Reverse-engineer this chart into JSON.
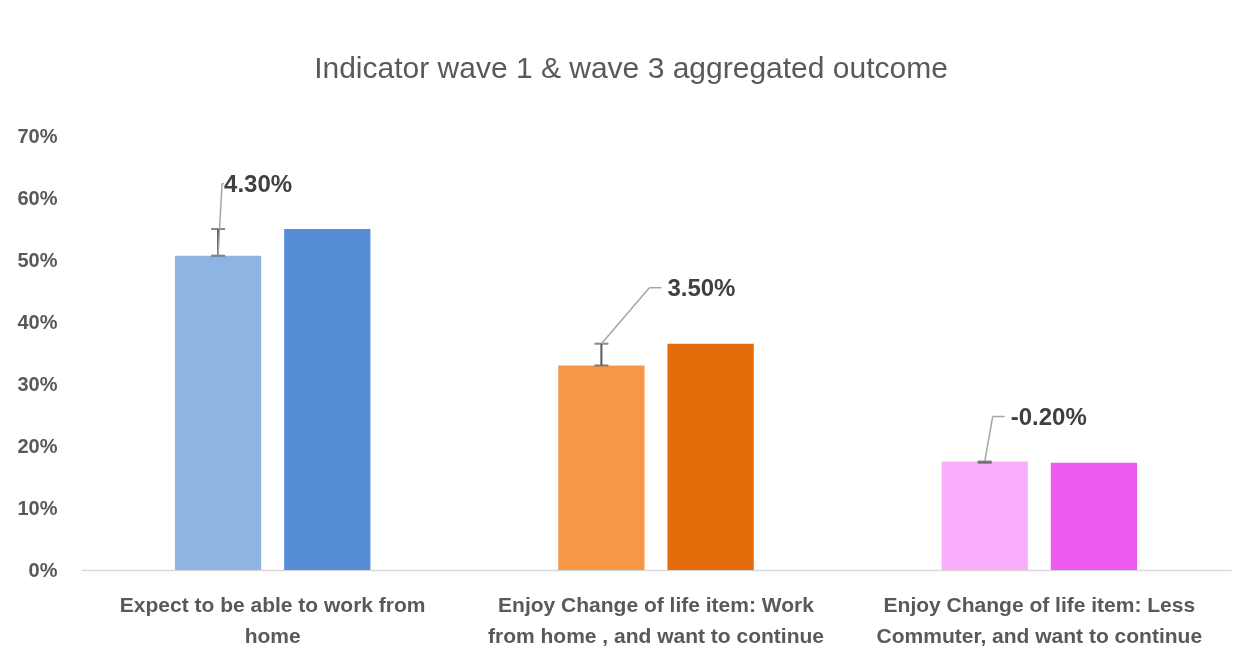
{
  "chart_data": {
    "type": "bar",
    "title": "Indicator wave 1 & wave 3  aggregated outcome",
    "categories": [
      "Expect to be able to work from home",
      "Enjoy Change of life item: Work from home , and want to continue",
      "Enjoy Change of life item: Less Commuter, and want to continue"
    ],
    "series": [
      {
        "colors": [
          "#8eb4e3",
          "#f79646",
          "#f9aefc"
        ],
        "values": [
          50.7,
          33.0,
          17.5
        ],
        "errors": [
          [
            50.7,
            55.0
          ],
          [
            33.0,
            36.5
          ],
          [
            17.3,
            17.5
          ]
        ]
      },
      {
        "colors": [
          "#558ed5",
          "#e46c0a",
          "#ee5bf0"
        ],
        "values": [
          55.0,
          36.5,
          17.3
        ]
      }
    ],
    "ylim": [
      0,
      70
    ],
    "yticks": [
      {
        "value": 0,
        "label": "0%"
      },
      {
        "value": 10,
        "label": "10%"
      },
      {
        "value": 20,
        "label": "20%"
      },
      {
        "value": 30,
        "label": "30%"
      },
      {
        "value": 40,
        "label": "40%"
      },
      {
        "value": 50,
        "label": "50%"
      },
      {
        "value": 60,
        "label": "60%"
      },
      {
        "value": 70,
        "label": "70%"
      }
    ],
    "annotations": [
      {
        "text": "4.30%",
        "y": 50.7
      },
      {
        "text": "3.50%",
        "y": 36.5
      },
      {
        "text": "-0.20%",
        "y": 17.5
      }
    ]
  }
}
